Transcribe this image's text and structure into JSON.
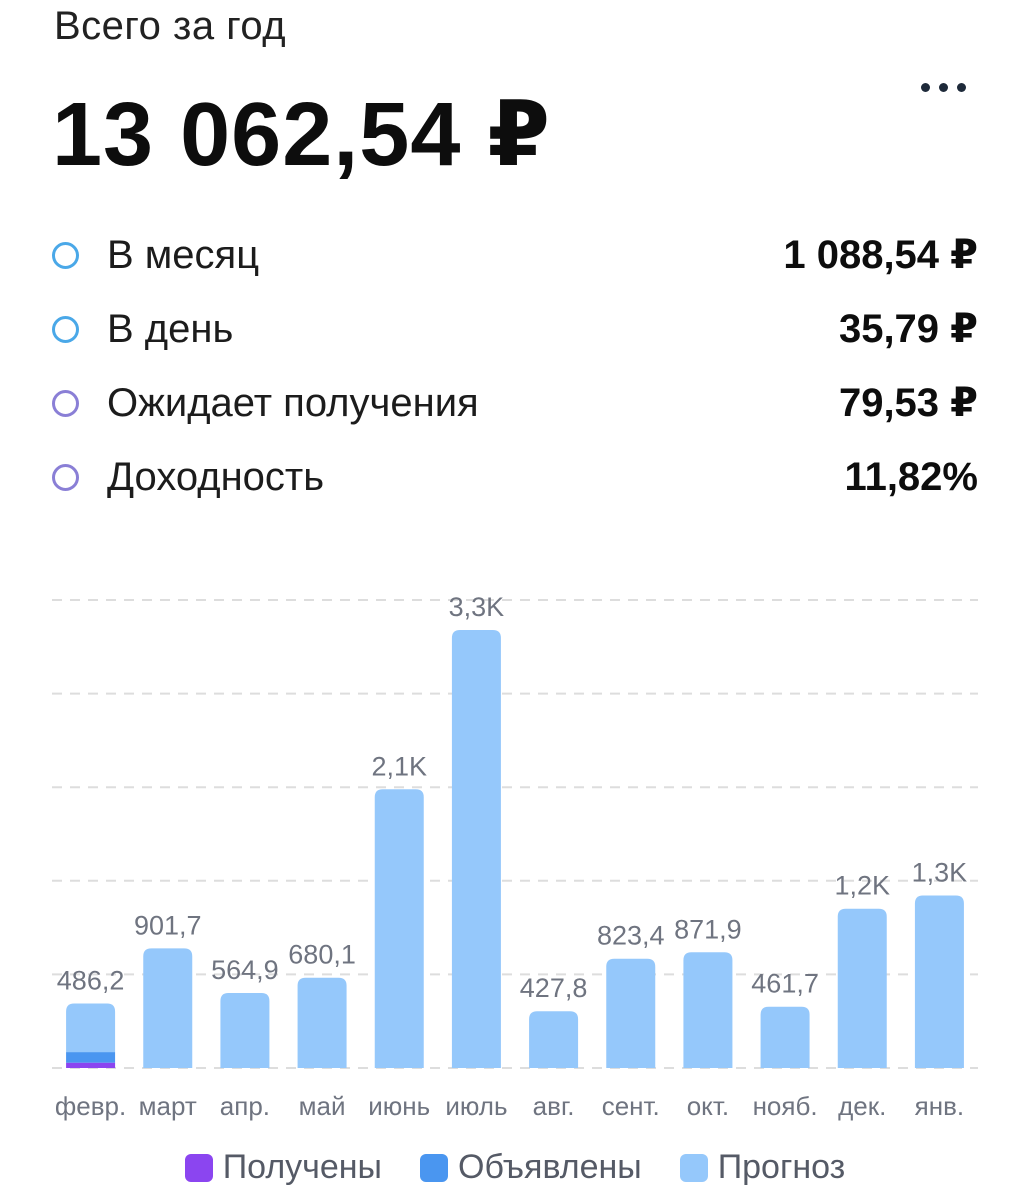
{
  "header": {
    "period_label": "Всего за год",
    "total": "13 062,54 ₽",
    "more_icon": "more-horizontal-icon"
  },
  "stats": [
    {
      "label": "В месяц",
      "value": "1 088,54 ₽",
      "ring_color": "#4aa8e8"
    },
    {
      "label": "В день",
      "value": "35,79 ₽",
      "ring_color": "#4aa8e8"
    },
    {
      "label": "Ожидает получения",
      "value": "79,53 ₽",
      "ring_color": "#8a7fd6"
    },
    {
      "label": "Доходность",
      "value": "11,82%",
      "ring_color": "#8a7fd6"
    }
  ],
  "legend": [
    {
      "label": "Получены",
      "color": "#8b45f0"
    },
    {
      "label": "Объявлены",
      "color": "#4a96f0"
    },
    {
      "label": "Прогноз",
      "color": "#95c8fb"
    }
  ],
  "chart_data": {
    "type": "bar",
    "stacked": true,
    "categories": [
      "февр.",
      "март",
      "апр.",
      "май",
      "июнь",
      "июль",
      "авг.",
      "сент.",
      "окт.",
      "нояб.",
      "дек.",
      "янв."
    ],
    "data_labels": [
      "486,2",
      "901,7",
      "564,9",
      "680,1",
      "2,1K",
      "3,3K",
      "427,8",
      "823,4",
      "871,9",
      "461,7",
      "1,2K",
      "1,3K"
    ],
    "series": [
      {
        "name": "Получены",
        "color": "#8b45f0",
        "values": [
          40,
          0,
          0,
          0,
          0,
          0,
          0,
          0,
          0,
          0,
          0,
          0
        ]
      },
      {
        "name": "Объявлены",
        "color": "#4a96f0",
        "values": [
          80,
          0,
          0,
          0,
          0,
          0,
          0,
          0,
          0,
          0,
          0,
          0
        ]
      },
      {
        "name": "Прогноз",
        "color": "#95c8fb",
        "values": [
          366.2,
          901.7,
          564.9,
          680.1,
          2100,
          3300,
          427.8,
          823.4,
          871.9,
          461.7,
          1200,
          1300
        ]
      }
    ],
    "ylim": [
      0,
      3300
    ],
    "grid": true,
    "legend_position": "bottom-center"
  }
}
